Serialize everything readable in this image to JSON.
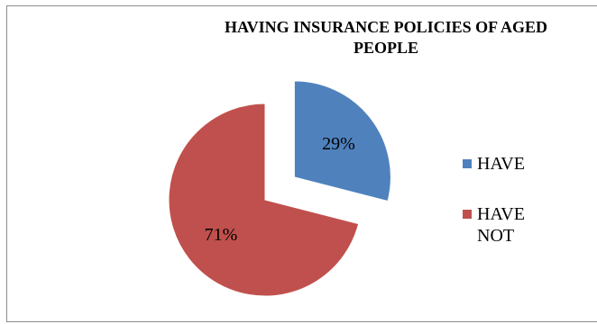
{
  "chart_data": {
    "type": "pie",
    "title": "HAVING  INSURANCE POLICIES  OF AGED\nPEOPLE",
    "slices": [
      {
        "name": "HAVE",
        "value": 29,
        "label": "29%",
        "color": "#4f81bd",
        "exploded": true
      },
      {
        "name": "HAVE\nNOT",
        "value": 71,
        "label": "71%",
        "color": "#c0504d",
        "exploded": false
      }
    ],
    "legend": {
      "position": "right",
      "items": [
        "HAVE",
        "HAVE\nNOT"
      ]
    }
  }
}
